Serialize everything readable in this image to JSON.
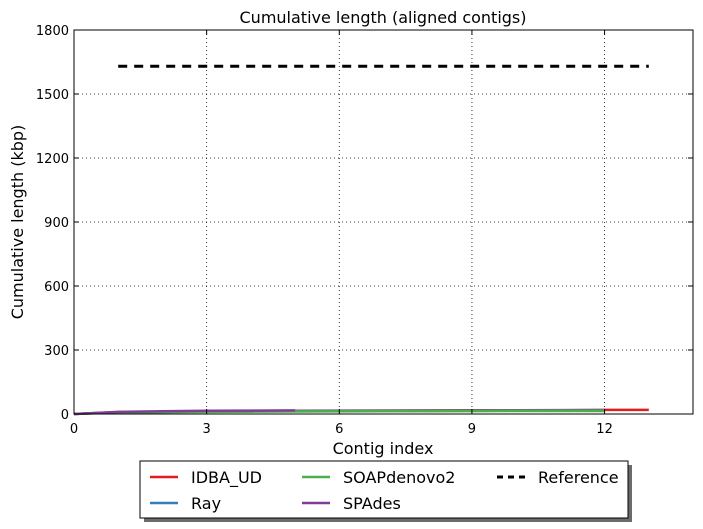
{
  "chart_data": {
    "type": "line",
    "title": "Cumulative length (aligned contigs)",
    "xlabel": "Contig index",
    "ylabel": "Cumulative length (kbp)",
    "xlim": [
      0,
      14
    ],
    "ylim": [
      0,
      1800
    ],
    "xticks": [
      0,
      3,
      6,
      9,
      12
    ],
    "yticks": [
      0,
      300,
      600,
      900,
      1200,
      1500,
      1800
    ],
    "grid": true,
    "legend_position": "bottom-center",
    "series": [
      {
        "name": "IDBA_UD",
        "color": "#e41a1c",
        "style": "solid",
        "x": [
          0,
          1,
          2,
          3,
          4,
          5,
          6,
          7,
          8,
          9,
          10,
          11,
          12,
          13
        ],
        "y": [
          0,
          9,
          11,
          13,
          14,
          15,
          16,
          16.5,
          17,
          17.5,
          18,
          18.5,
          19,
          19
        ]
      },
      {
        "name": "Ray",
        "color": "#377eb8",
        "style": "solid",
        "x": [
          0,
          1,
          2,
          3,
          4,
          5,
          6,
          7,
          8,
          9,
          10,
          11,
          12
        ],
        "y": [
          0,
          8,
          10,
          12,
          13,
          14,
          14.5,
          15,
          15.5,
          16,
          16.5,
          17,
          17
        ]
      },
      {
        "name": "SOAPdenovo2",
        "color": "#4daf4a",
        "style": "solid",
        "x": [
          0,
          1,
          2,
          3,
          4,
          5,
          6,
          7,
          8,
          9,
          10,
          11,
          12
        ],
        "y": [
          0,
          7,
          9,
          10,
          11,
          11.5,
          12,
          12.5,
          13,
          13.5,
          14,
          14,
          14
        ]
      },
      {
        "name": "SPAdes",
        "color": "#7e3d97",
        "style": "solid",
        "x": [
          0,
          1,
          2,
          3,
          4,
          5
        ],
        "y": [
          0,
          10,
          13,
          15,
          16,
          17
        ]
      },
      {
        "name": "Reference",
        "color": "#000000",
        "style": "dashed",
        "x": [
          1,
          13
        ],
        "y": [
          1630,
          1630
        ]
      }
    ]
  }
}
